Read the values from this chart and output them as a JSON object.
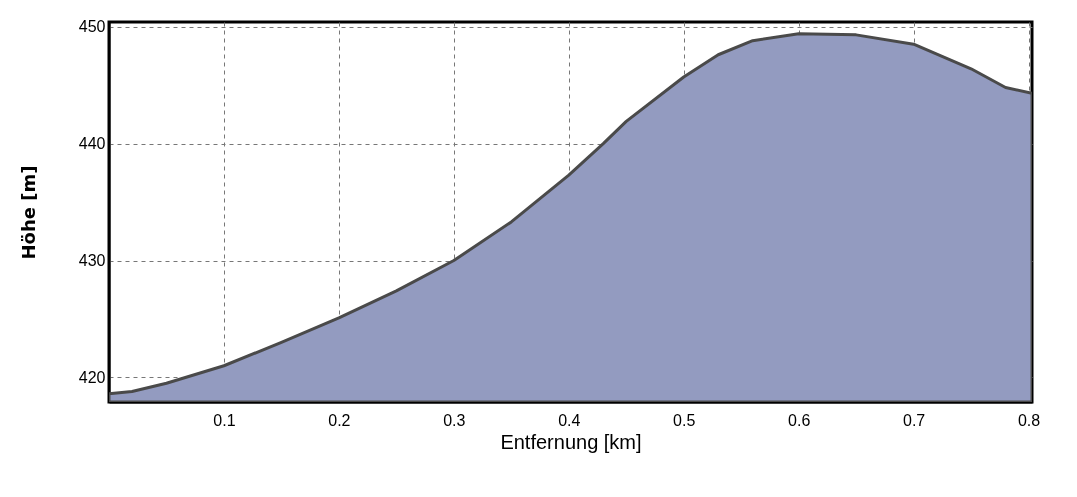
{
  "chart_data": {
    "type": "area",
    "xlabel": "Entfernung [km]",
    "ylabel": "Höhe [m]",
    "x": [
      0,
      0.02,
      0.05,
      0.1,
      0.15,
      0.2,
      0.25,
      0.3,
      0.35,
      0.4,
      0.43,
      0.45,
      0.5,
      0.53,
      0.56,
      0.6,
      0.65,
      0.7,
      0.75,
      0.78,
      0.803
    ],
    "series": [
      {
        "color": "#939bc0",
        "values": [
          418.6,
          418.8,
          419.5,
          421,
          423,
          425.1,
          427.4,
          430,
          433.3,
          437.3,
          440,
          441.9,
          445.7,
          447.6,
          448.8,
          449.4,
          449.3,
          448.5,
          446.4,
          444.8,
          444.3
        ]
      }
    ],
    "xlim": [
      0,
      0.803
    ],
    "xticks": [
      0.1,
      0.2,
      0.3,
      0.4,
      0.5,
      0.6,
      0.7,
      0.8
    ],
    "ylim": [
      417.9,
      450.4
    ],
    "yticks": [
      420,
      430,
      440,
      450
    ],
    "grid": true
  }
}
